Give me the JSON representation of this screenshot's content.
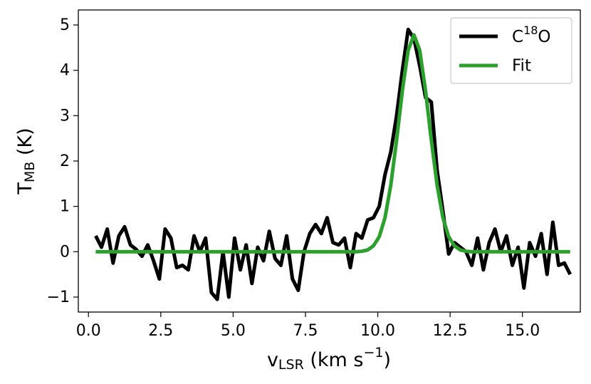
{
  "chart_data": {
    "type": "line",
    "xlabel": {
      "main": "v",
      "sub": "LSR",
      "rest": " (km s",
      "sup": "−1",
      "end": ")"
    },
    "ylabel": {
      "main": "T",
      "sub": "MB",
      "rest": " (K)"
    },
    "xlim": [
      -0.35,
      17.0
    ],
    "ylim": [
      -1.33,
      5.33
    ],
    "xticks": [
      {
        "value": 0,
        "label": "0.0"
      },
      2.5,
      {
        "value": 5,
        "label": "5.0"
      },
      7.5,
      {
        "value": 10,
        "label": "10.0"
      },
      12.5,
      {
        "value": 15,
        "label": "15.0"
      }
    ],
    "yticks": [
      {
        "value": -1,
        "label": "−1"
      },
      0,
      1,
      2,
      3,
      4,
      5
    ],
    "legend_position": "upper right",
    "x": [
      0.25,
      0.45,
      0.65,
      0.85,
      1.05,
      1.25,
      1.45,
      1.65,
      1.85,
      2.05,
      2.25,
      2.45,
      2.65,
      2.85,
      3.05,
      3.25,
      3.45,
      3.65,
      3.85,
      4.05,
      4.25,
      4.45,
      4.65,
      4.85,
      5.05,
      5.25,
      5.45,
      5.65,
      5.85,
      6.05,
      6.25,
      6.45,
      6.65,
      6.85,
      7.05,
      7.25,
      7.45,
      7.65,
      7.85,
      8.05,
      8.25,
      8.45,
      8.65,
      8.85,
      9.05,
      9.25,
      9.45,
      9.65,
      9.85,
      10.05,
      10.25,
      10.45,
      10.65,
      10.85,
      11.05,
      11.25,
      11.45,
      11.65,
      11.85,
      12.05,
      12.25,
      12.45,
      12.65,
      12.85,
      13.05,
      13.25,
      13.45,
      13.65,
      13.85,
      14.05,
      14.25,
      14.45,
      14.65,
      14.85,
      15.05,
      15.25,
      15.45,
      15.65,
      15.85,
      16.05,
      16.25,
      16.45,
      16.65
    ],
    "series": [
      {
        "name": {
          "main": "C",
          "sup": "18",
          "end": "O"
        },
        "color": "#000000",
        "values": [
          0.35,
          0.1,
          0.5,
          -0.25,
          0.35,
          0.55,
          0.15,
          0.05,
          -0.1,
          0.15,
          -0.2,
          -0.6,
          0.5,
          0.3,
          -0.35,
          -0.3,
          -0.4,
          0.35,
          0.0,
          0.3,
          -0.9,
          -1.05,
          0.0,
          -1.0,
          0.3,
          -0.4,
          0.15,
          -0.7,
          0.1,
          -0.2,
          0.45,
          -0.15,
          -0.3,
          0.35,
          -0.6,
          -0.85,
          0.0,
          0.4,
          0.6,
          0.4,
          0.75,
          0.2,
          0.15,
          0.3,
          -0.35,
          0.4,
          0.3,
          0.7,
          0.75,
          1.0,
          1.7,
          2.2,
          3.0,
          4.0,
          4.9,
          4.7,
          4.1,
          3.4,
          3.3,
          1.8,
          0.9,
          -0.05,
          0.2,
          0.1,
          0.0,
          -0.3,
          0.3,
          -0.4,
          0.2,
          0.5,
          0.0,
          0.35,
          -0.3,
          0.1,
          -0.8,
          0.2,
          -0.1,
          0.4,
          -0.5,
          0.65,
          -0.3,
          -0.25,
          -0.5
        ]
      },
      {
        "name": "Fit",
        "color": "#2ca02c",
        "values": [
          0,
          0,
          0,
          0,
          0,
          0,
          0,
          0,
          0,
          0,
          0,
          0,
          0,
          0,
          0,
          0,
          0,
          0,
          0,
          0,
          0,
          0,
          0,
          0,
          0,
          0,
          0,
          0,
          0,
          0,
          0,
          0,
          0,
          0,
          0,
          0,
          0,
          0,
          0,
          0,
          0,
          0,
          0,
          0,
          0,
          0,
          0.01,
          0.04,
          0.13,
          0.33,
          0.75,
          1.47,
          2.46,
          3.55,
          4.44,
          4.78,
          4.44,
          3.55,
          2.46,
          1.47,
          0.75,
          0.33,
          0.13,
          0.04,
          0.01,
          0,
          0,
          0,
          0,
          0,
          0,
          0,
          0,
          0,
          0,
          0,
          0,
          0,
          0,
          0,
          0,
          0,
          0
        ]
      }
    ]
  }
}
